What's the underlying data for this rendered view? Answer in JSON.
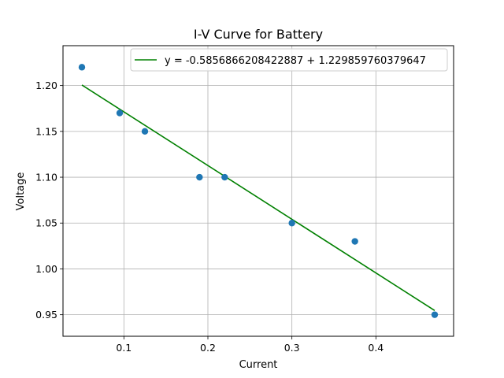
{
  "chart_data": {
    "type": "scatter",
    "title": "I-V Curve for Battery",
    "xlabel": "Current",
    "ylabel": "Voltage",
    "xlim": [
      0.0275,
      0.4925
    ],
    "ylim": [
      0.9265,
      1.2435
    ],
    "xticks": [
      0.1,
      0.2,
      0.3,
      0.4
    ],
    "xtick_labels": [
      "0.1",
      "0.2",
      "0.3",
      "0.4"
    ],
    "yticks": [
      0.95,
      1.0,
      1.05,
      1.1,
      1.15,
      1.2
    ],
    "ytick_labels": [
      "0.95",
      "1.00",
      "1.05",
      "1.10",
      "1.15",
      "1.20"
    ],
    "grid": true,
    "legend_position": "top-right",
    "series": [
      {
        "kind": "scatter",
        "color": "#1f77b4",
        "x": [
          0.05,
          0.095,
          0.125,
          0.19,
          0.22,
          0.3,
          0.375,
          0.47
        ],
        "y": [
          1.22,
          1.17,
          1.15,
          1.1,
          1.1,
          1.05,
          1.03,
          0.95
        ]
      },
      {
        "kind": "line",
        "name": "y = -0.5856866208422887 + 1.229859760379647",
        "color": "#008000",
        "x": [
          0.05,
          0.47
        ],
        "slope": -0.5856866208422887,
        "intercept": 1.229859760379647
      }
    ]
  }
}
